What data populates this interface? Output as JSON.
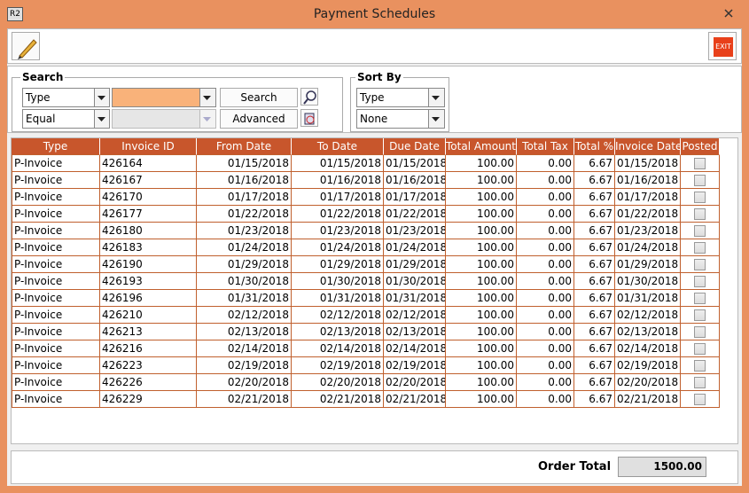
{
  "window": {
    "icon": "R2",
    "title": "Payment Schedules"
  },
  "toolbar": {
    "exit": "EXIT"
  },
  "search": {
    "label": "Search",
    "field": "Type",
    "operator": "Equal",
    "search_button": "Search",
    "advanced_button": "Advanced"
  },
  "sort": {
    "label": "Sort By",
    "field": "Type",
    "order": "None"
  },
  "table": {
    "columns": [
      "Type",
      "Invoice ID",
      "From Date",
      "To Date",
      "Due Date",
      "Total Amount",
      "Total Tax",
      "Total %",
      "Invoice Date",
      "Posted"
    ],
    "rows": [
      [
        "P-Invoice",
        "426164",
        "01/15/2018",
        "01/15/2018",
        "01/15/2018",
        "100.00",
        "0.00",
        "6.67",
        "01/15/2018",
        false
      ],
      [
        "P-Invoice",
        "426167",
        "01/16/2018",
        "01/16/2018",
        "01/16/2018",
        "100.00",
        "0.00",
        "6.67",
        "01/16/2018",
        false
      ],
      [
        "P-Invoice",
        "426170",
        "01/17/2018",
        "01/17/2018",
        "01/17/2018",
        "100.00",
        "0.00",
        "6.67",
        "01/17/2018",
        false
      ],
      [
        "P-Invoice",
        "426177",
        "01/22/2018",
        "01/22/2018",
        "01/22/2018",
        "100.00",
        "0.00",
        "6.67",
        "01/22/2018",
        false
      ],
      [
        "P-Invoice",
        "426180",
        "01/23/2018",
        "01/23/2018",
        "01/23/2018",
        "100.00",
        "0.00",
        "6.67",
        "01/23/2018",
        false
      ],
      [
        "P-Invoice",
        "426183",
        "01/24/2018",
        "01/24/2018",
        "01/24/2018",
        "100.00",
        "0.00",
        "6.67",
        "01/24/2018",
        false
      ],
      [
        "P-Invoice",
        "426190",
        "01/29/2018",
        "01/29/2018",
        "01/29/2018",
        "100.00",
        "0.00",
        "6.67",
        "01/29/2018",
        false
      ],
      [
        "P-Invoice",
        "426193",
        "01/30/2018",
        "01/30/2018",
        "01/30/2018",
        "100.00",
        "0.00",
        "6.67",
        "01/30/2018",
        false
      ],
      [
        "P-Invoice",
        "426196",
        "01/31/2018",
        "01/31/2018",
        "01/31/2018",
        "100.00",
        "0.00",
        "6.67",
        "01/31/2018",
        false
      ],
      [
        "P-Invoice",
        "426210",
        "02/12/2018",
        "02/12/2018",
        "02/12/2018",
        "100.00",
        "0.00",
        "6.67",
        "02/12/2018",
        false
      ],
      [
        "P-Invoice",
        "426213",
        "02/13/2018",
        "02/13/2018",
        "02/13/2018",
        "100.00",
        "0.00",
        "6.67",
        "02/13/2018",
        false
      ],
      [
        "P-Invoice",
        "426216",
        "02/14/2018",
        "02/14/2018",
        "02/14/2018",
        "100.00",
        "0.00",
        "6.67",
        "02/14/2018",
        false
      ],
      [
        "P-Invoice",
        "426223",
        "02/19/2018",
        "02/19/2018",
        "02/19/2018",
        "100.00",
        "0.00",
        "6.67",
        "02/19/2018",
        false
      ],
      [
        "P-Invoice",
        "426226",
        "02/20/2018",
        "02/20/2018",
        "02/20/2018",
        "100.00",
        "0.00",
        "6.67",
        "02/20/2018",
        false
      ],
      [
        "P-Invoice",
        "426229",
        "02/21/2018",
        "02/21/2018",
        "02/21/2018",
        "100.00",
        "0.00",
        "6.67",
        "02/21/2018",
        false
      ]
    ]
  },
  "footer": {
    "label": "Order Total",
    "value": "1500.00"
  }
}
